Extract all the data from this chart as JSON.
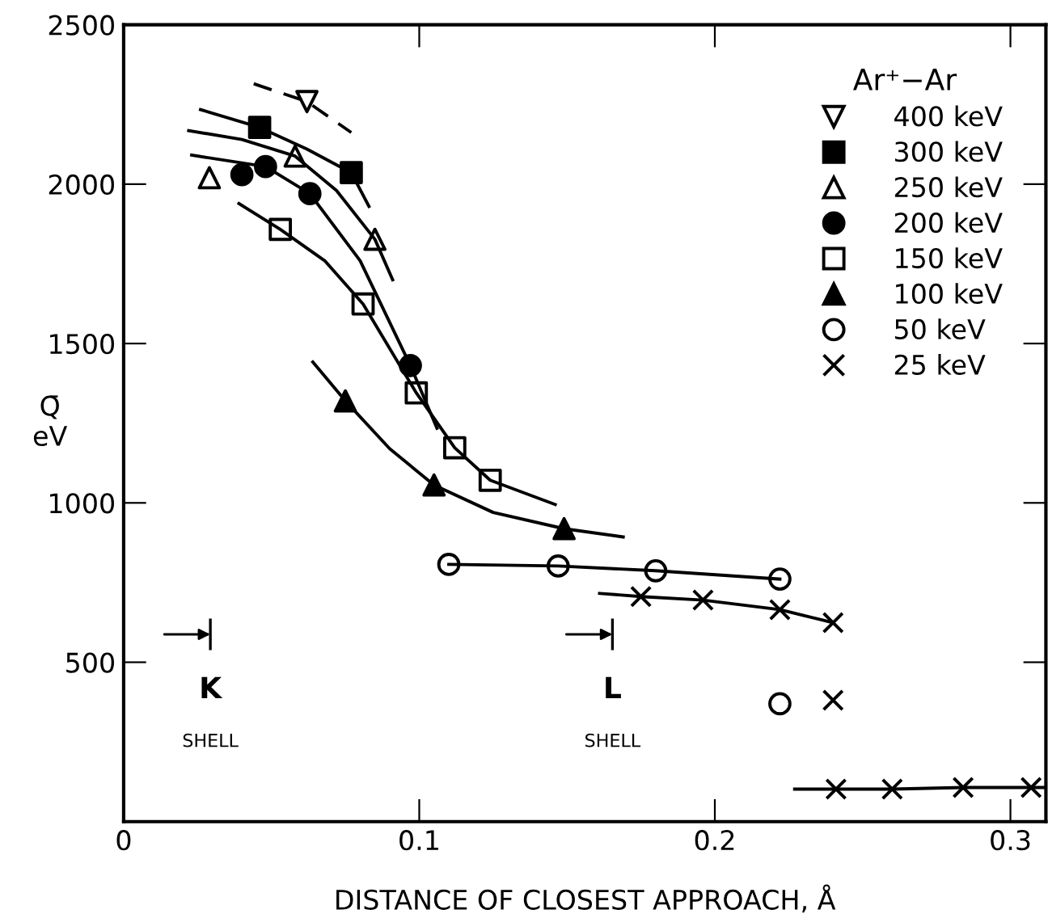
{
  "chart_data": {
    "type": "scatter",
    "xlabel": "DISTANCE OF CLOSEST APPROACH, Å",
    "ylabel": "Q̄\neV",
    "legend_title": "Ar⁺−Ar",
    "legend": "top right",
    "grid": false,
    "xlim": [
      0,
      0.312
    ],
    "ylim": [
      0,
      2500
    ],
    "xticks": [
      0,
      0.1,
      0.2,
      0.3
    ],
    "yticks": [
      500,
      1000,
      1500,
      2000,
      2500
    ],
    "series": [
      {
        "name": "400 keV",
        "color": "#000000",
        "marker": "triangle_down-open",
        "x": [
          0.062
        ],
        "values": [
          2259
        ]
      },
      {
        "name": "300 keV",
        "color": "#000000",
        "marker": "square",
        "x": [
          0.046,
          0.077
        ],
        "values": [
          2178,
          2036
        ]
      },
      {
        "name": "250 keV",
        "color": "#000000",
        "marker": "triangle-open",
        "x": [
          0.029,
          0.058,
          0.085
        ],
        "values": [
          2020,
          2088,
          1827
        ]
      },
      {
        "name": "200 keV",
        "color": "#000000",
        "marker": "circle",
        "x": [
          0.04,
          0.048,
          0.063,
          0.097
        ],
        "values": [
          2030,
          2055,
          1970,
          1431
        ]
      },
      {
        "name": "150 keV",
        "color": "#000000",
        "marker": "square-open",
        "x": [
          0.053,
          0.081,
          0.099,
          0.112,
          0.124
        ],
        "values": [
          1858,
          1624,
          1345,
          1173,
          1071
        ]
      },
      {
        "name": "100 keV",
        "color": "#000000",
        "marker": "triangle",
        "x": [
          0.075,
          0.105,
          0.149
        ],
        "values": [
          1320,
          1056,
          919
        ]
      },
      {
        "name": "50 keV",
        "color": "#000000",
        "marker": "circle-open",
        "x": [
          0.11,
          0.147,
          0.18,
          0.222,
          0.222
        ],
        "values": [
          807,
          802,
          787,
          761,
          370
        ]
      },
      {
        "name": "25 keV",
        "color": "#000000",
        "marker": "cross",
        "x": [
          0.175,
          0.196,
          0.222,
          0.24,
          0.24,
          0.241,
          0.26,
          0.284,
          0.307
        ],
        "values": [
          706,
          695,
          665,
          624,
          381,
          102,
          102,
          107,
          107
        ]
      },
      {
        "type": "line",
        "color": "#000000",
        "line_style": "dashed",
        "x": [
          0.044,
          0.062,
          0.077
        ],
        "values": [
          2315,
          2259,
          2162
        ]
      },
      {
        "type": "line",
        "color": "#000000",
        "line_style": "solid",
        "x": [
          0.026,
          0.046,
          0.062,
          0.077,
          0.083
        ],
        "values": [
          2234,
          2178,
          2110,
          2036,
          1930
        ]
      },
      {
        "type": "line",
        "color": "#000000",
        "line_style": "solid",
        "x": [
          0.022,
          0.04,
          0.058,
          0.072,
          0.085,
          0.091
        ],
        "values": [
          2168,
          2140,
          2088,
          1980,
          1827,
          1700
        ]
      },
      {
        "type": "line",
        "color": "#000000",
        "line_style": "solid",
        "x": [
          0.023,
          0.048,
          0.063,
          0.08,
          0.097,
          0.106
        ],
        "values": [
          2091,
          2055,
          1970,
          1760,
          1431,
          1234
        ]
      },
      {
        "type": "line",
        "color": "#000000",
        "line_style": "solid",
        "x": [
          0.039,
          0.053,
          0.068,
          0.081,
          0.099,
          0.112,
          0.124,
          0.146
        ],
        "values": [
          1939,
          1858,
          1760,
          1624,
          1345,
          1173,
          1071,
          995
        ]
      },
      {
        "type": "line",
        "color": "#000000",
        "line_style": "solid",
        "x": [
          0.064,
          0.075,
          0.09,
          0.105,
          0.125,
          0.149,
          0.169
        ],
        "values": [
          1442,
          1320,
          1170,
          1056,
          970,
          919,
          893
        ]
      },
      {
        "type": "line",
        "color": "#000000",
        "line_style": "solid",
        "x": [
          0.11,
          0.147,
          0.18,
          0.222
        ],
        "values": [
          807,
          802,
          787,
          761
        ]
      },
      {
        "type": "line",
        "color": "#000000",
        "line_style": "solid",
        "x": [
          0.161,
          0.175,
          0.196,
          0.222,
          0.24
        ],
        "values": [
          716,
          706,
          695,
          665,
          624
        ]
      },
      {
        "type": "line",
        "color": "#000000",
        "line_style": "solid",
        "x": [
          0.227,
          0.241,
          0.26,
          0.284,
          0.307,
          0.312
        ],
        "values": [
          102,
          102,
          102,
          107,
          107,
          107
        ]
      }
    ],
    "annotations": [
      "K",
      "SHELL",
      "L",
      "SHELL"
    ]
  }
}
